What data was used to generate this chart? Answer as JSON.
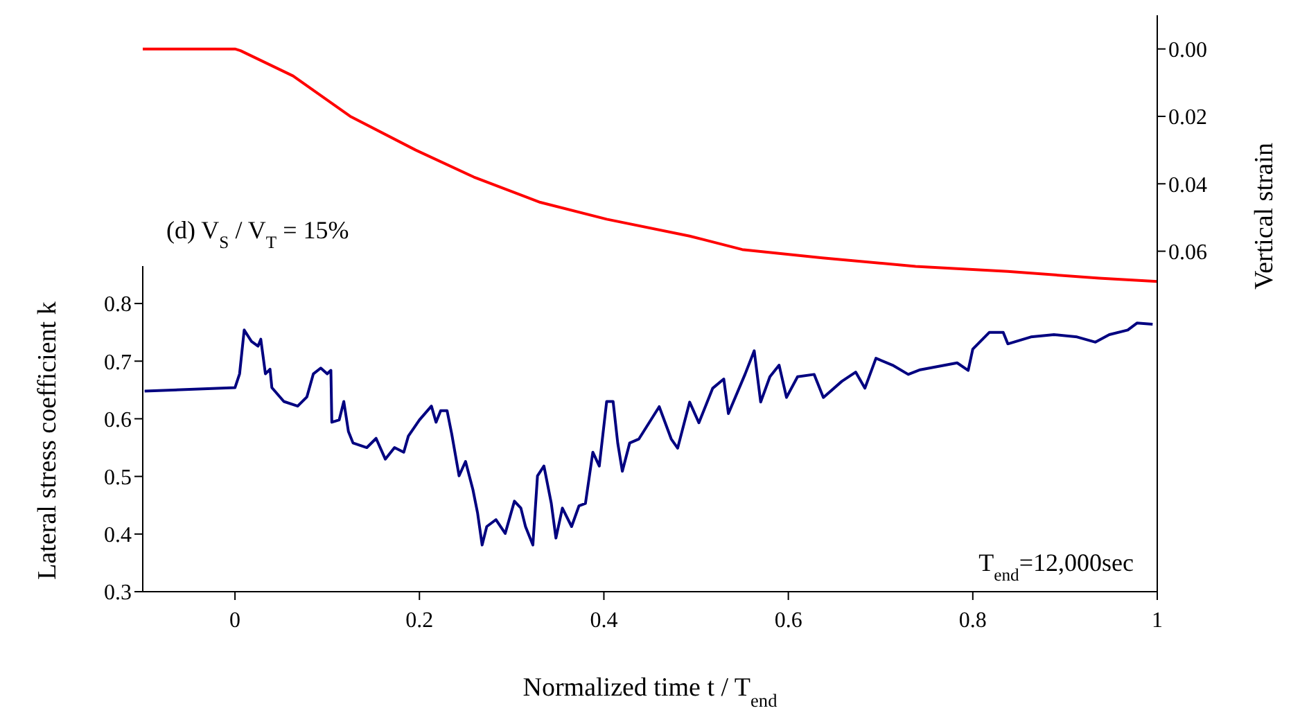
{
  "chart_data": {
    "type": "line",
    "xlabel": "Normalized time t / T$_{end}$",
    "ylabel": "Lateral stress coefficient k",
    "y2label": "Vertical strain",
    "annotations": [
      "(d) V$_{S}$ / V$_{T}$ = 15%",
      "T$_{end}$=12,000sec"
    ],
    "xlim": [
      -0.1,
      1
    ],
    "xticks": [
      0,
      0.2,
      0.4,
      0.6,
      0.8,
      1
    ],
    "ylim": [
      0.3,
      0.865
    ],
    "yticks": [
      0.3,
      0.4,
      0.5,
      0.6,
      0.7,
      0.8
    ],
    "y2lim": [
      0.161,
      -0.01
    ],
    "y2ticks": [
      {
        "value": 0,
        "label": "0.00"
      },
      {
        "value": 0.02,
        "label": "0.02"
      },
      {
        "value": 0.04,
        "label": "0.04"
      },
      {
        "value": 0.06,
        "label": "0.06"
      }
    ],
    "marker": "none",
    "series": [
      {
        "color": "#000080",
        "x": [
          -0.098,
          0,
          0.005,
          0.01,
          0.018,
          0.025,
          0.028,
          0.033,
          0.038,
          0.04,
          0.053,
          0.068,
          0.078,
          0.085,
          0.093,
          0.1,
          0.104,
          0.105,
          0.113,
          0.118,
          0.123,
          0.128,
          0.143,
          0.153,
          0.163,
          0.173,
          0.183,
          0.188,
          0.2,
          0.213,
          0.218,
          0.223,
          0.23,
          0.235,
          0.243,
          0.25,
          0.258,
          0.263,
          0.268,
          0.273,
          0.283,
          0.293,
          0.303,
          0.31,
          0.315,
          0.323,
          0.328,
          0.335,
          0.343,
          0.348,
          0.355,
          0.365,
          0.373,
          0.38,
          0.388,
          0.395,
          0.403,
          0.41,
          0.415,
          0.42,
          0.428,
          0.438,
          0.46,
          0.473,
          0.48,
          0.493,
          0.503,
          0.518,
          0.53,
          0.535,
          0.553,
          0.563,
          0.57,
          0.58,
          0.59,
          0.598,
          0.61,
          0.628,
          0.638,
          0.658,
          0.673,
          0.683,
          0.695,
          0.713,
          0.73,
          0.743,
          0.783,
          0.795,
          0.8,
          0.818,
          0.833,
          0.838,
          0.863,
          0.888,
          0.913,
          0.933,
          0.948,
          0.968,
          0.978,
          0.995
        ],
        "values": [
          0.648,
          0.654,
          0.678,
          0.754,
          0.734,
          0.726,
          0.738,
          0.678,
          0.686,
          0.654,
          0.63,
          0.622,
          0.638,
          0.678,
          0.688,
          0.678,
          0.684,
          0.594,
          0.598,
          0.63,
          0.578,
          0.558,
          0.55,
          0.566,
          0.53,
          0.55,
          0.542,
          0.57,
          0.598,
          0.622,
          0.594,
          0.614,
          0.614,
          0.574,
          0.501,
          0.526,
          0.477,
          0.437,
          0.381,
          0.413,
          0.425,
          0.401,
          0.457,
          0.445,
          0.413,
          0.381,
          0.501,
          0.518,
          0.453,
          0.393,
          0.445,
          0.413,
          0.449,
          0.453,
          0.542,
          0.518,
          0.63,
          0.63,
          0.558,
          0.509,
          0.558,
          0.565,
          0.621,
          0.565,
          0.549,
          0.629,
          0.593,
          0.653,
          0.669,
          0.609,
          0.677,
          0.718,
          0.629,
          0.673,
          0.693,
          0.637,
          0.673,
          0.677,
          0.637,
          0.665,
          0.681,
          0.653,
          0.705,
          0.693,
          0.677,
          0.685,
          0.697,
          0.684,
          0.721,
          0.75,
          0.75,
          0.73,
          0.742,
          0.746,
          0.742,
          0.733,
          0.746,
          0.754,
          0.766,
          0.764
        ]
      },
      {
        "color": "#ff0000",
        "axis": "y2",
        "x": [
          -0.1,
          0,
          0.006,
          0.063,
          0.125,
          0.196,
          0.259,
          0.331,
          0.403,
          0.493,
          0.55,
          0.637,
          0.738,
          0.838,
          0.937,
          1.0
        ],
        "values": [
          0,
          0,
          0.0005,
          0.008,
          0.02,
          0.03,
          0.038,
          0.0455,
          0.0505,
          0.0555,
          0.0595,
          0.062,
          0.0645,
          0.066,
          0.068,
          0.069
        ]
      }
    ]
  }
}
